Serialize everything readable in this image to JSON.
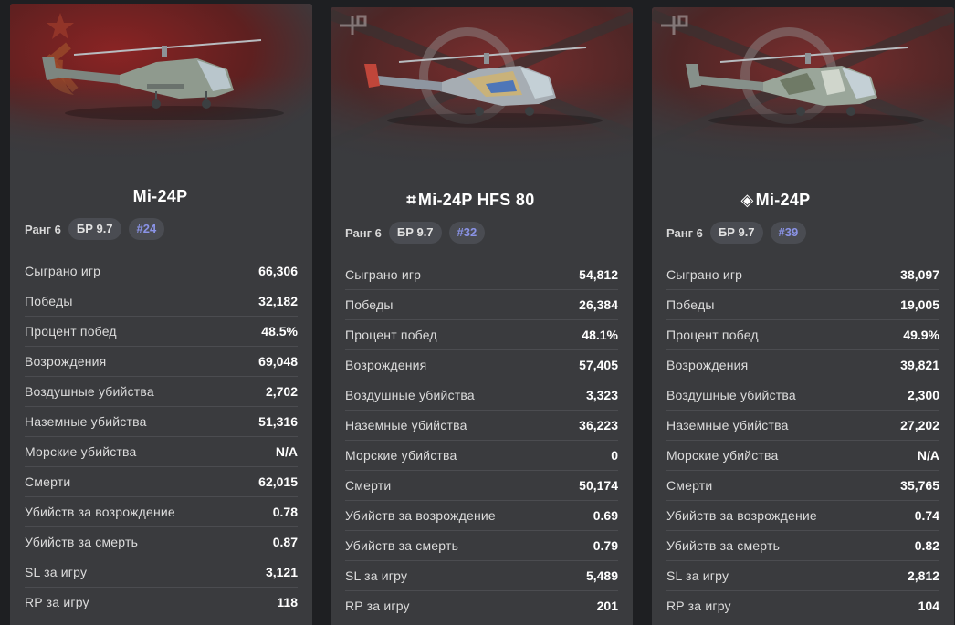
{
  "cards": [
    {
      "title": "Mi-24P",
      "prefix": "",
      "flag": "ussr",
      "rank_label": "Ранг 6",
      "br_label": "БР 9.7",
      "position_label": "#24",
      "stats": [
        {
          "label": "Сыграно игр",
          "value": "66,306"
        },
        {
          "label": "Победы",
          "value": "32,182"
        },
        {
          "label": "Процент побед",
          "value": "48.5%"
        },
        {
          "label": "Возрождения",
          "value": "69,048"
        },
        {
          "label": "Воздушные убийства",
          "value": "2,702"
        },
        {
          "label": "Наземные убийства",
          "value": "51,316"
        },
        {
          "label": "Морские убийства",
          "value": "N/A"
        },
        {
          "label": "Смерти",
          "value": "62,015"
        },
        {
          "label": "Убийств за возрождение",
          "value": "0.78"
        },
        {
          "label": "Убийств за смерть",
          "value": "0.87"
        },
        {
          "label": "SL за игру",
          "value": "3,121"
        },
        {
          "label": "RP за игру",
          "value": "118"
        }
      ]
    },
    {
      "title": "Mi-24P HFS 80",
      "prefix": "⌗",
      "flag": "germany",
      "rank_label": "Ранг 6",
      "br_label": "БР 9.7",
      "position_label": "#32",
      "stats": [
        {
          "label": "Сыграно игр",
          "value": "54,812"
        },
        {
          "label": "Победы",
          "value": "26,384"
        },
        {
          "label": "Процент побед",
          "value": "48.1%"
        },
        {
          "label": "Возрождения",
          "value": "57,405"
        },
        {
          "label": "Воздушные убийства",
          "value": "3,323"
        },
        {
          "label": "Наземные убийства",
          "value": "36,223"
        },
        {
          "label": "Морские убийства",
          "value": "0"
        },
        {
          "label": "Смерти",
          "value": "50,174"
        },
        {
          "label": "Убийств за возрождение",
          "value": "0.69"
        },
        {
          "label": "Убийств за смерть",
          "value": "0.79"
        },
        {
          "label": "SL за игру",
          "value": "5,489"
        },
        {
          "label": "RP за игру",
          "value": "201"
        }
      ]
    },
    {
      "title": "Mi-24P",
      "prefix": "◈",
      "flag": "germany",
      "rank_label": "Ранг 6",
      "br_label": "БР 9.7",
      "position_label": "#39",
      "stats": [
        {
          "label": "Сыграно игр",
          "value": "38,097"
        },
        {
          "label": "Победы",
          "value": "19,005"
        },
        {
          "label": "Процент побед",
          "value": "49.9%"
        },
        {
          "label": "Возрождения",
          "value": "39,821"
        },
        {
          "label": "Воздушные убийства",
          "value": "2,300"
        },
        {
          "label": "Наземные убийства",
          "value": "27,202"
        },
        {
          "label": "Морские убийства",
          "value": "N/A"
        },
        {
          "label": "Смерти",
          "value": "35,765"
        },
        {
          "label": "Убийств за возрождение",
          "value": "0.74"
        },
        {
          "label": "Убийств за смерть",
          "value": "0.82"
        },
        {
          "label": "SL за игру",
          "value": "2,812"
        },
        {
          "label": "RP за игру",
          "value": "104"
        }
      ]
    }
  ],
  "colors": {
    "background": "#1e1f22",
    "card": "#3a3b3e",
    "pill": "#4a4c52",
    "position_accent": "#8a93e6",
    "ussr_red": "#7a1f1f",
    "german_red": "#6b2a2a"
  }
}
